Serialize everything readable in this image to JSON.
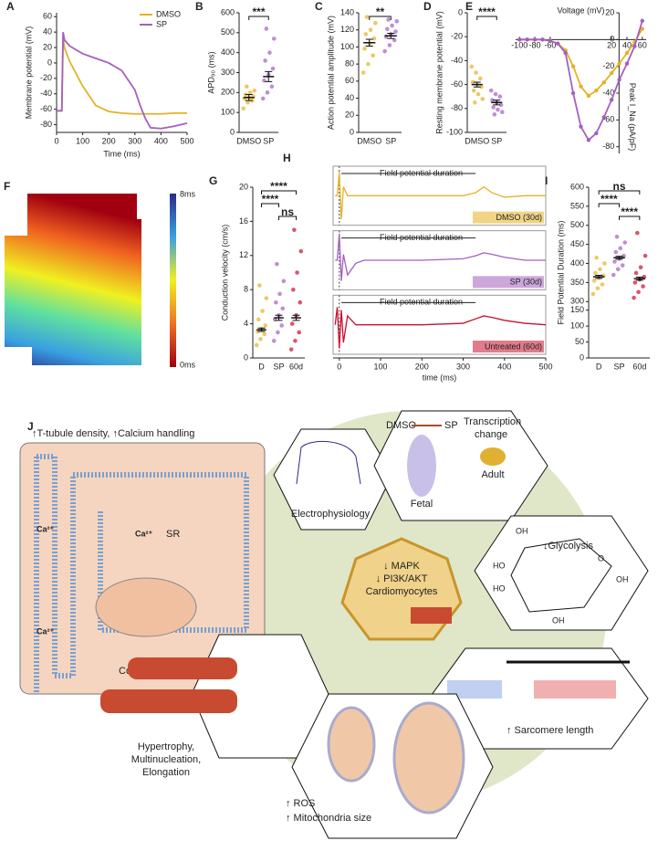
{
  "chart_data": [
    {
      "label": "A",
      "type": "line",
      "xlabel": "Time (ms)",
      "ylabel": "Membrane potential (mV)",
      "x": [
        0,
        20,
        25,
        30,
        50,
        100,
        150,
        200,
        250,
        300,
        320,
        340,
        360,
        400,
        450,
        500
      ],
      "series": [
        {
          "name": "DMSO",
          "color": "#e3b225",
          "values": [
            -62,
            -62,
            35,
            20,
            2,
            -30,
            -55,
            -63,
            -65,
            -66,
            -66,
            -66,
            -66,
            -66,
            -65,
            -65
          ]
        },
        {
          "name": "SP",
          "color": "#a45fc0",
          "values": [
            -62,
            -62,
            40,
            30,
            22,
            12,
            6,
            0,
            -10,
            -35,
            -55,
            -72,
            -84,
            -85,
            -82,
            -78
          ]
        }
      ],
      "xlim": [
        0,
        500
      ],
      "xticks": [
        0,
        100,
        200,
        300,
        400,
        500
      ],
      "ylim": [
        -90,
        65
      ],
      "yticks": [
        -80,
        -60,
        -40,
        -20,
        0,
        20,
        40,
        60
      ],
      "legend": "upper right"
    },
    {
      "label": "B",
      "type": "dot",
      "ylabel": "APD₉₀ (ms)",
      "categories": [
        "DMSO",
        "SP"
      ],
      "colors": [
        "#e3b225",
        "#a45fc0"
      ],
      "means": [
        175,
        280
      ],
      "errors": [
        15,
        25
      ],
      "points": [
        [
          120,
          150,
          160,
          170,
          175,
          180,
          190,
          200,
          210,
          230
        ],
        [
          170,
          200,
          230,
          260,
          290,
          320,
          360,
          400,
          470,
          520
        ]
      ],
      "ylim": [
        0,
        600
      ],
      "yticks": [
        0,
        100,
        200,
        300,
        400,
        500,
        600
      ],
      "significance": [
        "***"
      ]
    },
    {
      "label": "C",
      "type": "dot",
      "ylabel": "Action potential amplitude (mV)",
      "categories": [
        "DMSO",
        "SP"
      ],
      "colors": [
        "#e3b225",
        "#a45fc0"
      ],
      "means": [
        105,
        113
      ],
      "errors": [
        4,
        3
      ],
      "points": [
        [
          70,
          80,
          90,
          98,
          104,
          110,
          115,
          120,
          128,
          135
        ],
        [
          95,
          102,
          108,
          112,
          115,
          118,
          121,
          125,
          130,
          132
        ]
      ],
      "ylim": [
        0,
        140
      ],
      "yticks": [
        0,
        20,
        40,
        60,
        80,
        100,
        120,
        140
      ],
      "significance": [
        "**"
      ]
    },
    {
      "label": "D",
      "type": "dot",
      "ylabel": "Resting membrane potential (mV)",
      "categories": [
        "DMSO",
        "SP"
      ],
      "colors": [
        "#e3b225",
        "#a45fc0"
      ],
      "means": [
        -60,
        -75
      ],
      "errors": [
        2,
        2
      ],
      "points": [
        [
          -45,
          -50,
          -55,
          -58,
          -60,
          -62,
          -65,
          -68,
          -72,
          -75
        ],
        [
          -65,
          -68,
          -70,
          -73,
          -75,
          -77,
          -79,
          -81,
          -83,
          -85
        ]
      ],
      "ylim": [
        -100,
        0
      ],
      "yticks": [
        -100,
        -80,
        -60,
        -40,
        -20,
        0
      ],
      "significance": [
        "****"
      ]
    },
    {
      "label": "E",
      "type": "line",
      "axis_cross": true,
      "xlabel": "Voltage (mV)",
      "ylabel": "Peak I_Na (pA/pF)",
      "x": [
        -100,
        -90,
        -80,
        -70,
        -60,
        -50,
        -40,
        -30,
        -20,
        -10,
        0,
        10,
        20,
        30,
        40,
        50,
        60
      ],
      "series": [
        {
          "name": "DMSO",
          "color": "#e3b225",
          "values": [
            0,
            0,
            0,
            0,
            -1,
            -3,
            -8,
            -20,
            -35,
            -42,
            -38,
            -32,
            -25,
            -18,
            -10,
            -2,
            8
          ]
        },
        {
          "name": "SP",
          "color": "#a45fc0",
          "values": [
            0,
            0,
            0,
            0,
            -1,
            -3,
            -10,
            -40,
            -65,
            -75,
            -70,
            -58,
            -45,
            -30,
            -18,
            -5,
            14
          ]
        }
      ],
      "xlim": [
        -105,
        65
      ],
      "xticks": [
        -100,
        -80,
        -60,
        20,
        40,
        60
      ],
      "ylim": [
        -85,
        20
      ],
      "yticks": [
        -80,
        -60,
        -40,
        -20,
        0,
        20
      ]
    },
    {
      "label": "G",
      "type": "dot",
      "ylabel": "Conduction velocity (cm/s)",
      "categories": [
        "D",
        "SP",
        "60d"
      ],
      "colors": [
        "#e3b225",
        "#a45fc0",
        "#c8102e"
      ],
      "means": [
        3.3,
        4.7,
        4.7
      ],
      "errors": [
        0.2,
        0.3,
        0.3
      ],
      "points": [
        [
          1.5,
          2.2,
          2.8,
          3.1,
          3.4,
          3.8,
          4.5,
          5.5,
          7,
          8.5
        ],
        [
          2,
          3,
          3.8,
          4.5,
          5,
          5.8,
          6.5,
          7.5,
          9,
          11
        ],
        [
          1,
          2,
          3,
          4,
          5,
          6.5,
          8,
          10,
          12.5,
          15
        ]
      ],
      "ylim": [
        0,
        20
      ],
      "yticks": [
        0,
        4,
        8,
        12,
        16,
        20
      ],
      "significance": [
        "****",
        "****",
        "ns"
      ]
    },
    {
      "label": "H",
      "type": "traces",
      "xlabel": "time (ms)",
      "annotation": "Field potential duration",
      "x": [
        -10,
        -5,
        0,
        5,
        10,
        20,
        40,
        60,
        100,
        200,
        300,
        330,
        350,
        370,
        400,
        450,
        500
      ],
      "series": [
        {
          "name": "DMSO (30d)",
          "color": "#e3b225",
          "values": [
            0,
            0,
            0.8,
            -0.8,
            0.3,
            0,
            0,
            0,
            0,
            0,
            0,
            0.1,
            0.3,
            0.1,
            -0.05,
            0,
            0
          ]
        },
        {
          "name": "SP (30d)",
          "color": "#a45fc0",
          "values": [
            0,
            0,
            0.9,
            -0.7,
            0.2,
            -0.5,
            -0.1,
            0,
            0,
            0,
            0.05,
            0.15,
            0.25,
            0.2,
            0.1,
            0,
            0
          ]
        },
        {
          "name": "Untreated (60d)",
          "color": "#c8102e",
          "values": [
            0,
            0.6,
            -0.8,
            0.5,
            -0.6,
            0.3,
            0,
            0,
            0,
            0,
            0.05,
            0.2,
            0.3,
            0.25,
            0.15,
            0.05,
            0
          ]
        }
      ],
      "xlim": [
        -15,
        500
      ],
      "xticks": [
        0,
        100,
        200,
        300,
        400,
        500
      ],
      "ylim": [
        -1,
        1
      ]
    },
    {
      "label": "I",
      "type": "dot",
      "ylabel": "Field Potential Duration (ms)",
      "categories": [
        "D",
        "SP",
        "60d"
      ],
      "colors": [
        "#e3b225",
        "#a45fc0",
        "#c8102e"
      ],
      "means": [
        365,
        415,
        360
      ],
      "errors": [
        4,
        4,
        4
      ],
      "points": [
        [
          320,
          335,
          345,
          355,
          362,
          368,
          375,
          385,
          400,
          415
        ],
        [
          370,
          385,
          395,
          405,
          412,
          420,
          430,
          440,
          455,
          470
        ],
        [
          310,
          325,
          340,
          350,
          358,
          365,
          375,
          390,
          420,
          480
        ]
      ],
      "ylim": [
        0,
        600
      ],
      "ybreak": [
        150,
        300
      ],
      "yticks": [
        0,
        50,
        100,
        150,
        300,
        350,
        400,
        450,
        500,
        550,
        600
      ],
      "significance": [
        "ns",
        "****",
        "****"
      ]
    }
  ],
  "heatmap": {
    "label": "F",
    "colorbar": [
      "8ms",
      "0ms"
    ]
  },
  "diagram": {
    "label": "J",
    "box_title": "↑T-tubule density, ↑Calcium handling",
    "ca": "Ca²⁺",
    "sr": "SR",
    "contraction": "Contraction",
    "electrophysiology": "Electrophysiology",
    "dmso": "DMSO",
    "sp": "SP",
    "transcription": [
      "Transcription",
      "change"
    ],
    "fetal": "Fetal",
    "adult": "Adult",
    "center": [
      "↓ MAPK",
      "↓ PI3K/AKT",
      "Cardiomyocytes"
    ],
    "glycolysis": "↓Glycolysis",
    "oh": "OH",
    "ho": "HO",
    "o": "O",
    "sarcomere": "↑ Sarcomere length",
    "hypertrophy": [
      "Hypertrophy,",
      "Multinucleation,",
      "Elongation"
    ],
    "ros": "↑ ROS",
    "mito": "↑ Mitochondria size"
  }
}
